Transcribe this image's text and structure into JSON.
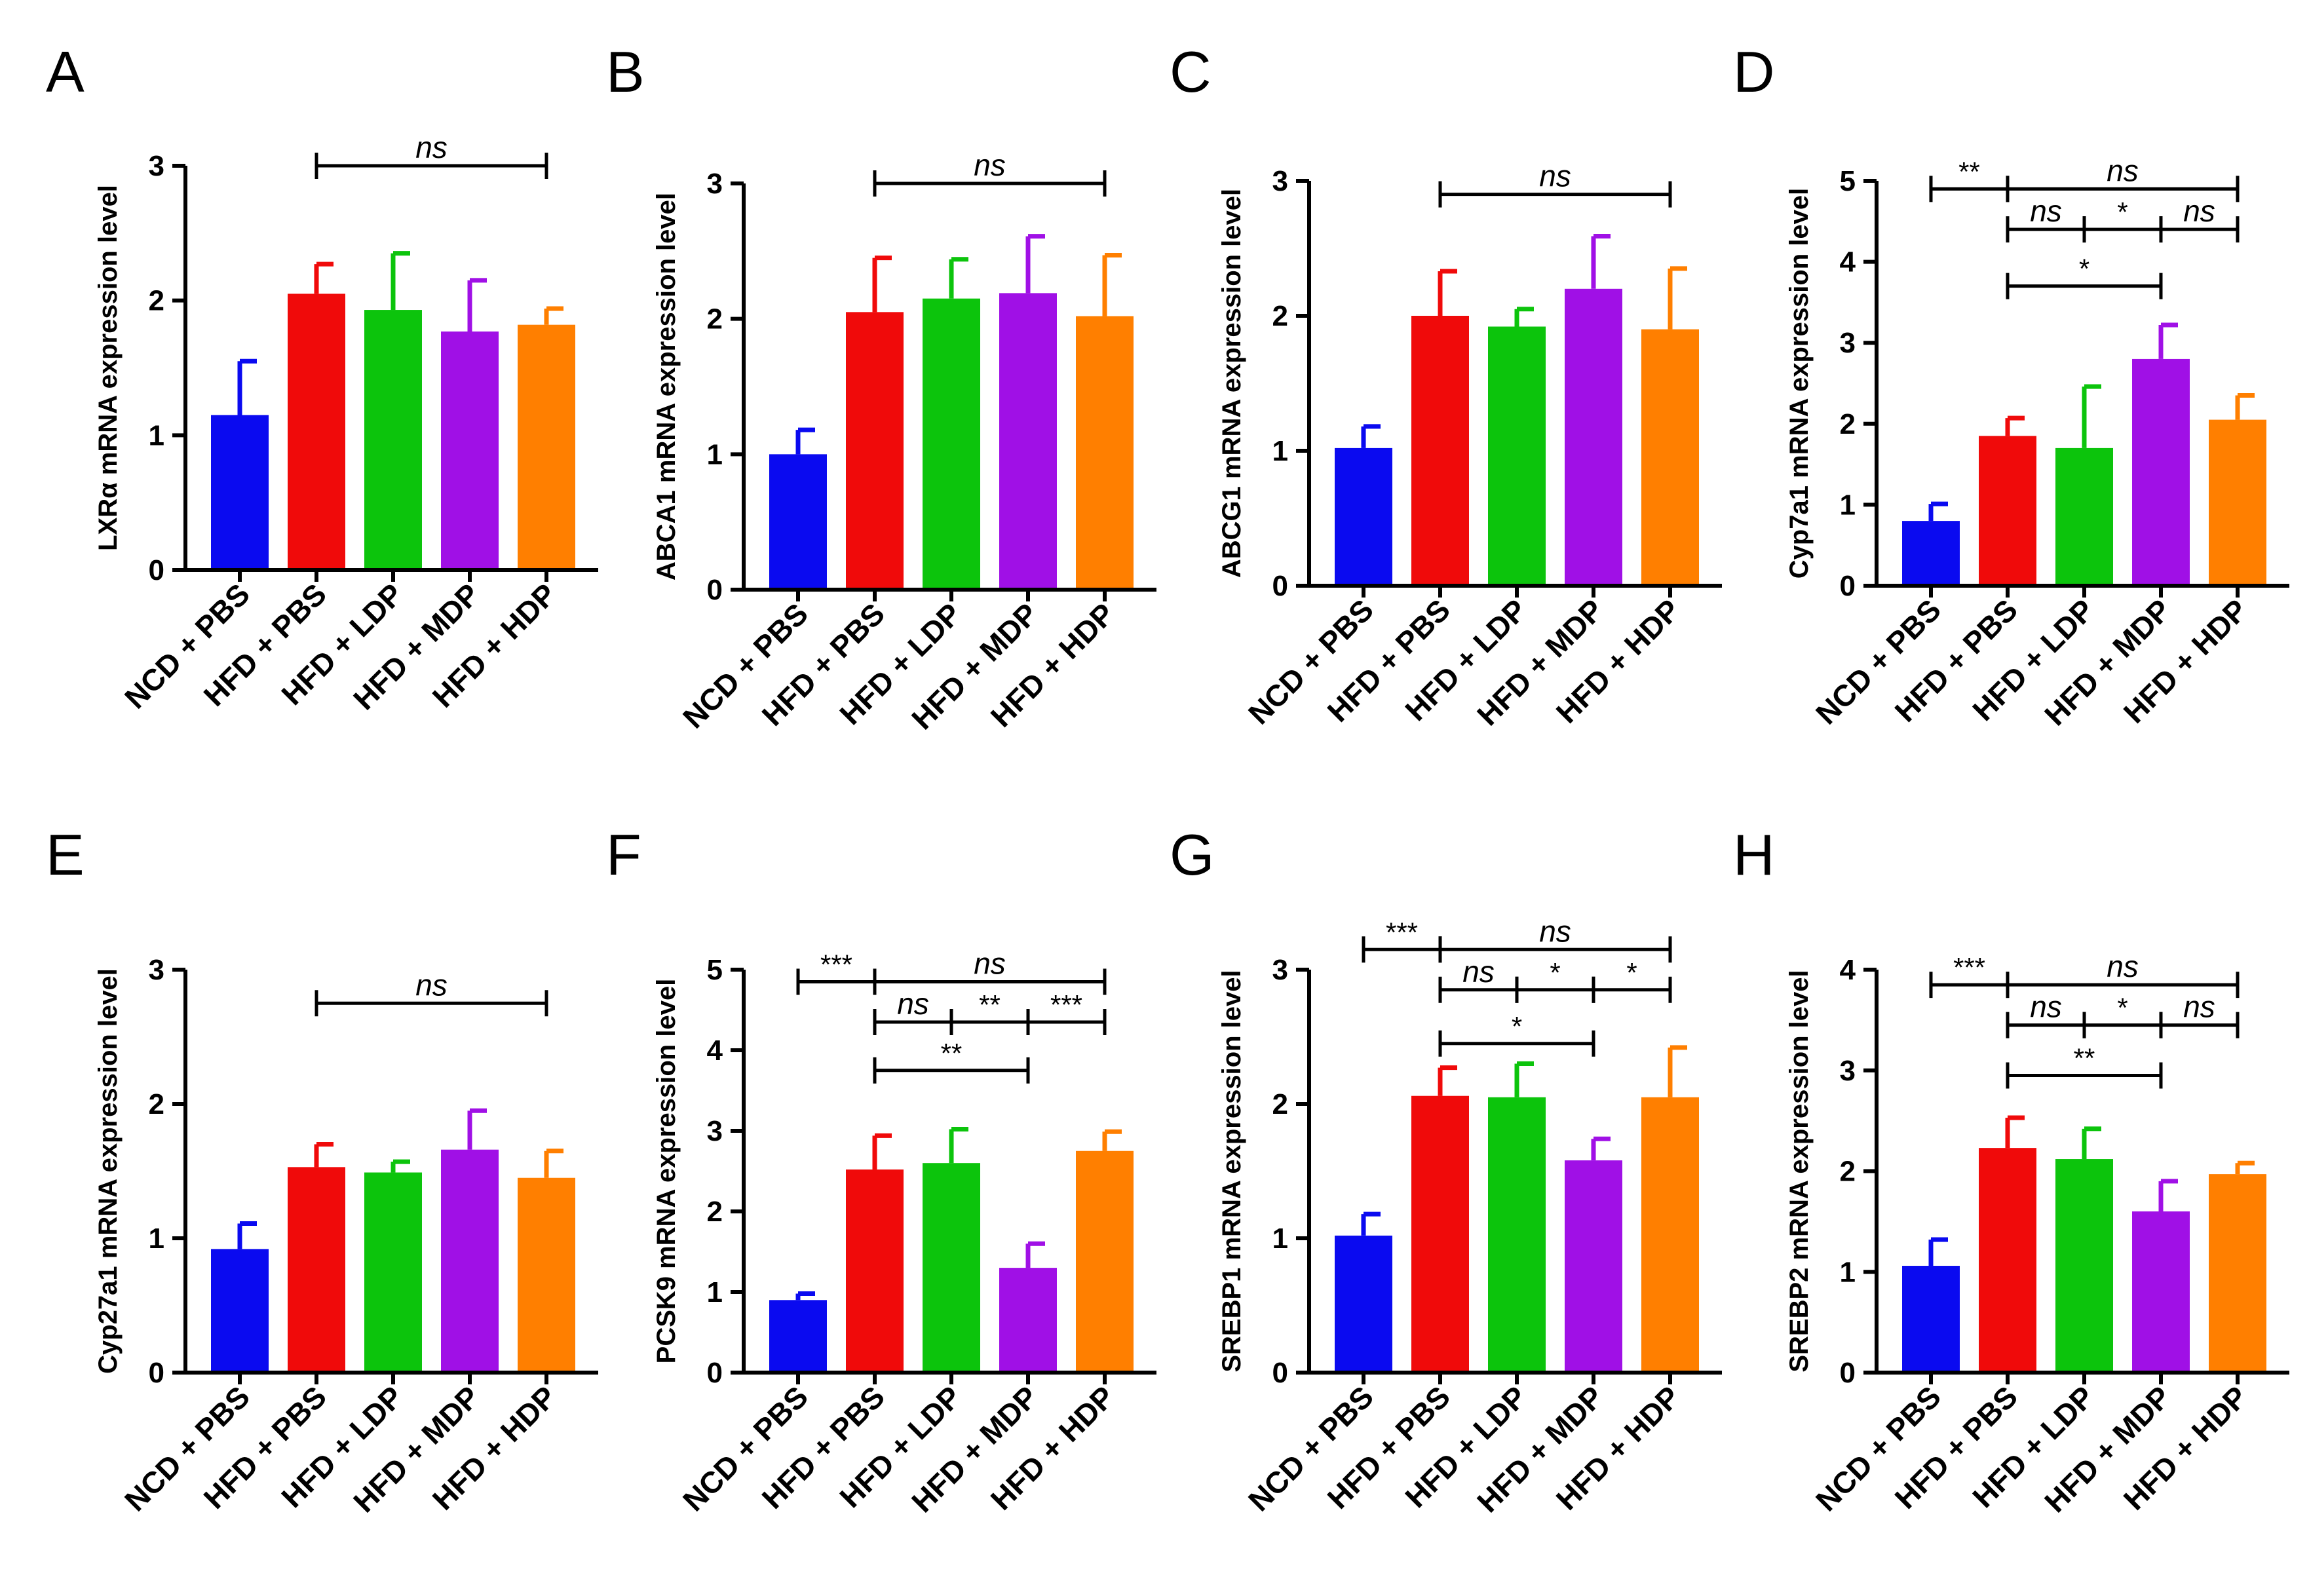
{
  "categories": [
    "NCD + PBS",
    "HFD + PBS",
    "HFD + LDP",
    "HFD + MDP",
    "HFD + HDP"
  ],
  "bar_colors": [
    "#0a0af0",
    "#f00a0a",
    "#0cc40c",
    "#a010e6",
    "#ff7f00"
  ],
  "chart_data": [
    {
      "type": "bar",
      "panel": "A",
      "ylabel": "LXRα mRNA expression level",
      "ylim": [
        0,
        3
      ],
      "yticks": [
        0,
        1,
        2,
        3
      ],
      "values": [
        1.15,
        2.05,
        1.93,
        1.77,
        1.82
      ],
      "errors": [
        0.4,
        0.22,
        0.42,
        0.38,
        0.12
      ],
      "significance": [
        {
          "from": 1,
          "to": 4,
          "level": 3.0,
          "label": "ns"
        }
      ]
    },
    {
      "type": "bar",
      "panel": "B",
      "ylabel": "ABCA1 mRNA expression level",
      "ylim": [
        0,
        3
      ],
      "yticks": [
        0,
        1,
        2,
        3
      ],
      "values": [
        1.0,
        2.05,
        2.15,
        2.19,
        2.02
      ],
      "errors": [
        0.18,
        0.4,
        0.29,
        0.42,
        0.45
      ],
      "significance": [
        {
          "from": 1,
          "to": 4,
          "level": 3.0,
          "label": "ns"
        }
      ]
    },
    {
      "type": "bar",
      "panel": "C",
      "ylabel": "ABCG1 mRNA expression level",
      "ylim": [
        0,
        3
      ],
      "yticks": [
        0,
        1,
        2,
        3
      ],
      "values": [
        1.02,
        2.0,
        1.92,
        2.2,
        1.9
      ],
      "errors": [
        0.16,
        0.33,
        0.13,
        0.39,
        0.45
      ],
      "significance": [
        {
          "from": 1,
          "to": 4,
          "level": 2.9,
          "label": "ns"
        }
      ]
    },
    {
      "type": "bar",
      "panel": "D",
      "ylabel": "Cyp7a1 mRNA expression level",
      "ylim": [
        0,
        5
      ],
      "yticks": [
        0,
        1,
        2,
        3,
        4,
        5
      ],
      "values": [
        0.8,
        1.85,
        1.7,
        2.8,
        2.05
      ],
      "errors": [
        0.21,
        0.22,
        0.76,
        0.42,
        0.3
      ],
      "significance": [
        {
          "from": 0,
          "to": 1,
          "level": 4.9,
          "label": "**"
        },
        {
          "from": 1,
          "to": 4,
          "level": 4.9,
          "label": "ns"
        },
        {
          "from": 1,
          "to": 2,
          "level": 4.4,
          "label": "ns"
        },
        {
          "from": 2,
          "to": 3,
          "level": 4.4,
          "label": "*"
        },
        {
          "from": 3,
          "to": 4,
          "level": 4.4,
          "label": "ns"
        },
        {
          "from": 1,
          "to": 3,
          "level": 3.7,
          "label": "*"
        }
      ]
    },
    {
      "type": "bar",
      "panel": "E",
      "ylabel": "Cyp27a1 mRNA expression level",
      "ylim": [
        0,
        3
      ],
      "yticks": [
        0,
        1,
        2,
        3
      ],
      "values": [
        0.92,
        1.53,
        1.49,
        1.66,
        1.45
      ],
      "errors": [
        0.19,
        0.17,
        0.08,
        0.29,
        0.2
      ],
      "significance": [
        {
          "from": 1,
          "to": 4,
          "level": 2.75,
          "label": "ns"
        }
      ]
    },
    {
      "type": "bar",
      "panel": "F",
      "ylabel": "PCSK9 mRNA expression level",
      "ylim": [
        0,
        5
      ],
      "yticks": [
        0,
        1,
        2,
        3,
        4,
        5
      ],
      "values": [
        0.9,
        2.52,
        2.6,
        1.3,
        2.75
      ],
      "errors": [
        0.08,
        0.42,
        0.42,
        0.3,
        0.24
      ],
      "significance": [
        {
          "from": 0,
          "to": 1,
          "level": 4.85,
          "label": "***"
        },
        {
          "from": 1,
          "to": 4,
          "level": 4.85,
          "label": "ns"
        },
        {
          "from": 1,
          "to": 2,
          "level": 4.35,
          "label": "ns"
        },
        {
          "from": 2,
          "to": 3,
          "level": 4.35,
          "label": "**"
        },
        {
          "from": 3,
          "to": 4,
          "level": 4.35,
          "label": "***"
        },
        {
          "from": 1,
          "to": 3,
          "level": 3.75,
          "label": "**"
        }
      ]
    },
    {
      "type": "bar",
      "panel": "G",
      "ylabel": "SREBP1 mRNA expression level",
      "ylim": [
        0,
        3
      ],
      "yticks": [
        0,
        1,
        2,
        3
      ],
      "values": [
        1.02,
        2.06,
        2.05,
        1.58,
        2.05
      ],
      "errors": [
        0.16,
        0.21,
        0.25,
        0.16,
        0.37
      ],
      "significance": [
        {
          "from": 0,
          "to": 1,
          "level": 3.15,
          "label": "***"
        },
        {
          "from": 1,
          "to": 4,
          "level": 3.15,
          "label": "ns"
        },
        {
          "from": 1,
          "to": 2,
          "level": 2.85,
          "label": "ns"
        },
        {
          "from": 2,
          "to": 3,
          "level": 2.85,
          "label": "*"
        },
        {
          "from": 3,
          "to": 4,
          "level": 2.85,
          "label": "*"
        },
        {
          "from": 1,
          "to": 3,
          "level": 2.45,
          "label": "*"
        }
      ]
    },
    {
      "type": "bar",
      "panel": "H",
      "ylabel": "SREBP2 mRNA expression level",
      "ylim": [
        0,
        4
      ],
      "yticks": [
        0,
        1,
        2,
        3,
        4
      ],
      "values": [
        1.06,
        2.23,
        2.12,
        1.6,
        1.97
      ],
      "errors": [
        0.26,
        0.3,
        0.3,
        0.3,
        0.11
      ],
      "significance": [
        {
          "from": 0,
          "to": 1,
          "level": 3.85,
          "label": "***"
        },
        {
          "from": 1,
          "to": 4,
          "level": 3.85,
          "label": "ns"
        },
        {
          "from": 1,
          "to": 2,
          "level": 3.45,
          "label": "ns"
        },
        {
          "from": 2,
          "to": 3,
          "level": 3.45,
          "label": "*"
        },
        {
          "from": 3,
          "to": 4,
          "level": 3.45,
          "label": "ns"
        },
        {
          "from": 1,
          "to": 3,
          "level": 2.95,
          "label": "**"
        }
      ]
    }
  ]
}
